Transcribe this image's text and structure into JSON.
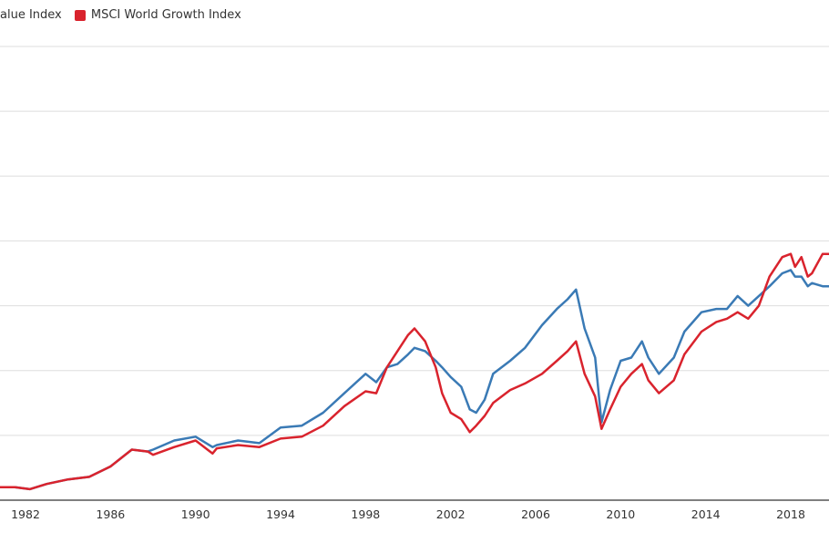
{
  "chart_data": {
    "type": "line",
    "title": "",
    "xlabel": "",
    "ylabel": "",
    "xlim": [
      1980.8,
      2019.8
    ],
    "ylim": [
      0,
      7
    ],
    "x_ticks": [
      1982,
      1986,
      1990,
      1994,
      1998,
      2002,
      2006,
      2010,
      2014,
      2018
    ],
    "grid": true,
    "legend": "top-left",
    "series": [
      {
        "name": "MSCI World Value Index",
        "legend_label": "alue Index",
        "color": "#3a7ab5",
        "x": [
          1980.8,
          1981.5,
          1982.2,
          1983,
          1984,
          1985,
          1986,
          1987,
          1987.75,
          1988,
          1989,
          1990,
          1990.8,
          1991,
          1992,
          1993,
          1994,
          1995,
          1996,
          1997,
          1998,
          1998.5,
          1999,
          1999.5,
          2000,
          2000.3,
          2000.8,
          2001.3,
          2001.6,
          2002,
          2002.5,
          2002.9,
          2003.2,
          2003.6,
          2004,
          2004.8,
          2005.5,
          2006.3,
          2007,
          2007.5,
          2007.9,
          2008.3,
          2008.8,
          2009.1,
          2009.5,
          2010,
          2010.5,
          2011,
          2011.3,
          2011.8,
          2012.5,
          2013,
          2013.8,
          2014.5,
          2015,
          2015.5,
          2016,
          2016.5,
          2017,
          2017.6,
          2018,
          2018.2,
          2018.5,
          2018.8,
          2019,
          2019.5,
          2019.8
        ],
        "y": [
          0.2,
          0.2,
          0.17,
          0.25,
          0.32,
          0.36,
          0.52,
          0.78,
          0.75,
          0.78,
          0.92,
          0.98,
          0.82,
          0.85,
          0.92,
          0.88,
          1.12,
          1.15,
          1.35,
          1.65,
          1.95,
          1.82,
          2.05,
          2.1,
          2.25,
          2.35,
          2.3,
          2.15,
          2.05,
          1.9,
          1.75,
          1.4,
          1.35,
          1.55,
          1.95,
          2.15,
          2.35,
          2.7,
          2.95,
          3.1,
          3.25,
          2.65,
          2.2,
          1.2,
          1.7,
          2.15,
          2.2,
          2.45,
          2.2,
          1.95,
          2.2,
          2.6,
          2.9,
          2.95,
          2.95,
          3.15,
          3.0,
          3.15,
          3.3,
          3.5,
          3.55,
          3.45,
          3.45,
          3.3,
          3.35,
          3.3,
          3.3
        ]
      },
      {
        "name": "MSCI World Growth Index",
        "legend_label": "MSCI World Growth Index",
        "color": "#d9232d",
        "x": [
          1980.8,
          1981.5,
          1982.2,
          1983,
          1984,
          1985,
          1986,
          1987,
          1987.75,
          1988,
          1989,
          1990,
          1990.8,
          1991,
          1992,
          1993,
          1994,
          1995,
          1996,
          1997,
          1998,
          1998.5,
          1999,
          1999.5,
          2000,
          2000.3,
          2000.8,
          2001.3,
          2001.6,
          2002,
          2002.5,
          2002.9,
          2003.2,
          2003.6,
          2004,
          2004.8,
          2005.5,
          2006.3,
          2007,
          2007.5,
          2007.9,
          2008.3,
          2008.8,
          2009.1,
          2009.5,
          2010,
          2010.5,
          2011,
          2011.3,
          2011.8,
          2012.5,
          2013,
          2013.8,
          2014.5,
          2015,
          2015.5,
          2016,
          2016.5,
          2017,
          2017.6,
          2018,
          2018.2,
          2018.5,
          2018.8,
          2019,
          2019.5,
          2019.8
        ],
        "y": [
          0.2,
          0.2,
          0.17,
          0.25,
          0.32,
          0.36,
          0.52,
          0.78,
          0.75,
          0.7,
          0.82,
          0.92,
          0.72,
          0.8,
          0.85,
          0.82,
          0.95,
          0.98,
          1.15,
          1.45,
          1.68,
          1.65,
          2.05,
          2.3,
          2.55,
          2.65,
          2.45,
          2.05,
          1.65,
          1.35,
          1.25,
          1.05,
          1.15,
          1.3,
          1.5,
          1.7,
          1.8,
          1.95,
          2.15,
          2.3,
          2.45,
          1.95,
          1.6,
          1.1,
          1.4,
          1.75,
          1.95,
          2.1,
          1.85,
          1.65,
          1.85,
          2.25,
          2.6,
          2.75,
          2.8,
          2.9,
          2.8,
          3.0,
          3.45,
          3.75,
          3.8,
          3.6,
          3.75,
          3.45,
          3.5,
          3.8,
          3.8
        ]
      }
    ]
  }
}
